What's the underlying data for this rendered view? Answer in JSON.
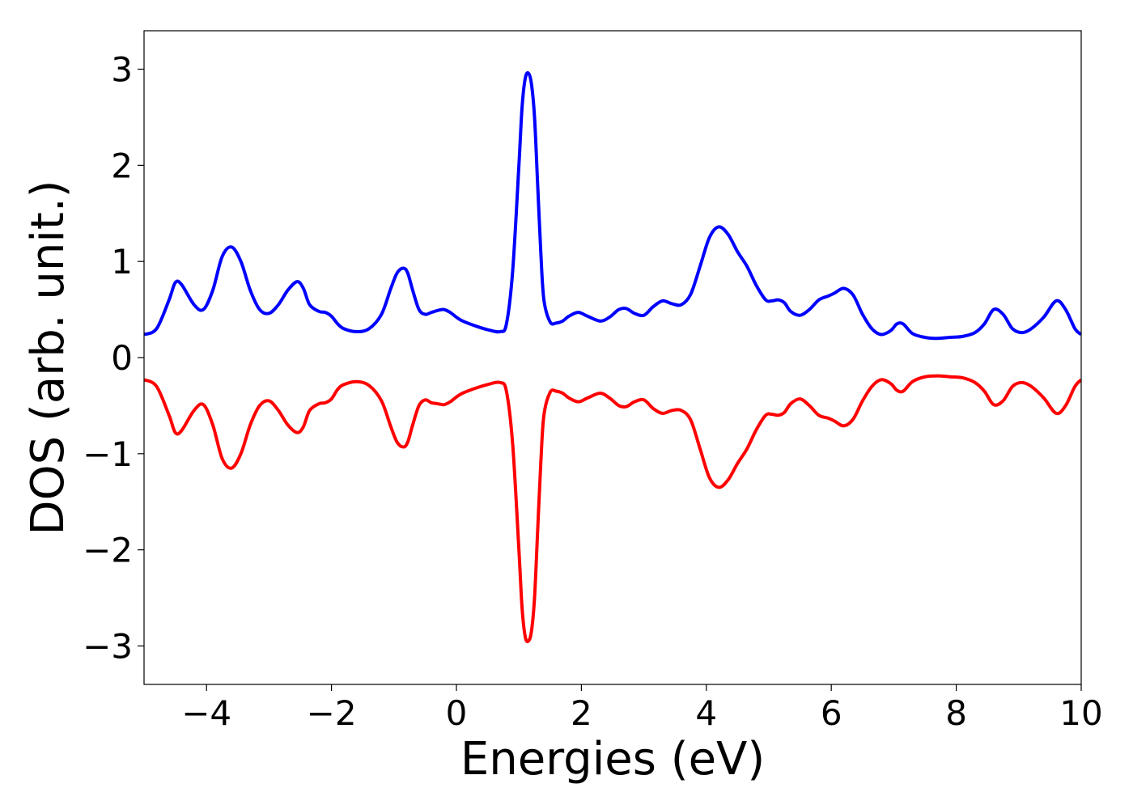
{
  "chart_data": {
    "type": "line",
    "title": "",
    "xlabel": "Energies (eV)",
    "ylabel": "DOS (arb. unit.)",
    "xlim": [
      -5,
      10
    ],
    "ylim": [
      -3.4,
      3.4
    ],
    "xticks": [
      -4,
      -2,
      0,
      2,
      4,
      6,
      8,
      10
    ],
    "xtick_labels": [
      "−4",
      "−2",
      "0",
      "2",
      "4",
      "6",
      "8",
      "10"
    ],
    "yticks": [
      3,
      2,
      1,
      0,
      -1,
      -2,
      -3
    ],
    "ytick_labels": [
      "3",
      "2",
      "1",
      "0",
      "−1",
      "−2",
      "−3"
    ],
    "grid": false,
    "legend": "none",
    "series": [
      {
        "color": "#0000ff",
        "x": [
          -5.0,
          -4.8,
          -4.6,
          -4.5,
          -4.4,
          -4.2,
          -4.05,
          -3.9,
          -3.75,
          -3.6,
          -3.45,
          -3.3,
          -3.15,
          -3.0,
          -2.85,
          -2.7,
          -2.55,
          -2.45,
          -2.35,
          -2.2,
          -2.1,
          -2.0,
          -1.9,
          -1.8,
          -1.6,
          -1.4,
          -1.2,
          -1.05,
          -0.95,
          -0.85,
          -0.78,
          -0.7,
          -0.6,
          -0.5,
          -0.4,
          -0.3,
          -0.2,
          -0.1,
          0.0,
          0.1,
          0.3,
          0.5,
          0.7,
          0.8,
          0.9,
          1.0,
          1.05,
          1.1,
          1.15,
          1.2,
          1.25,
          1.3,
          1.35,
          1.4,
          1.5,
          1.6,
          1.7,
          1.8,
          1.95,
          2.1,
          2.3,
          2.45,
          2.6,
          2.72,
          2.85,
          3.0,
          3.15,
          3.3,
          3.45,
          3.6,
          3.75,
          3.9,
          4.05,
          4.2,
          4.35,
          4.5,
          4.65,
          4.8,
          4.95,
          5.05,
          5.15,
          5.25,
          5.35,
          5.5,
          5.65,
          5.8,
          5.95,
          6.05,
          6.2,
          6.35,
          6.5,
          6.65,
          6.8,
          6.95,
          7.05,
          7.15,
          7.3,
          7.5,
          7.7,
          7.9,
          8.1,
          8.3,
          8.45,
          8.6,
          8.75,
          8.9,
          9.05,
          9.2,
          9.4,
          9.6,
          9.75,
          9.9,
          10.0
        ],
        "y": [
          0.24,
          0.3,
          0.6,
          0.78,
          0.76,
          0.55,
          0.5,
          0.7,
          1.05,
          1.15,
          1.0,
          0.7,
          0.5,
          0.46,
          0.55,
          0.7,
          0.79,
          0.72,
          0.55,
          0.48,
          0.47,
          0.43,
          0.35,
          0.3,
          0.27,
          0.3,
          0.45,
          0.72,
          0.88,
          0.93,
          0.88,
          0.7,
          0.5,
          0.45,
          0.47,
          0.49,
          0.5,
          0.47,
          0.42,
          0.38,
          0.33,
          0.29,
          0.27,
          0.35,
          0.9,
          2.0,
          2.6,
          2.9,
          2.96,
          2.85,
          2.5,
          1.8,
          1.1,
          0.6,
          0.37,
          0.36,
          0.38,
          0.43,
          0.47,
          0.43,
          0.38,
          0.42,
          0.5,
          0.51,
          0.46,
          0.44,
          0.53,
          0.59,
          0.56,
          0.55,
          0.66,
          0.95,
          1.25,
          1.36,
          1.28,
          1.1,
          0.95,
          0.75,
          0.6,
          0.59,
          0.6,
          0.57,
          0.48,
          0.44,
          0.5,
          0.6,
          0.64,
          0.67,
          0.72,
          0.65,
          0.45,
          0.3,
          0.24,
          0.28,
          0.35,
          0.35,
          0.25,
          0.21,
          0.2,
          0.21,
          0.22,
          0.26,
          0.35,
          0.5,
          0.45,
          0.3,
          0.26,
          0.3,
          0.42,
          0.59,
          0.5,
          0.3,
          0.24
        ]
      },
      {
        "color": "#ff0000",
        "x": [
          -5.0,
          -4.8,
          -4.6,
          -4.5,
          -4.4,
          -4.2,
          -4.05,
          -3.9,
          -3.75,
          -3.6,
          -3.45,
          -3.3,
          -3.15,
          -3.0,
          -2.85,
          -2.7,
          -2.55,
          -2.45,
          -2.35,
          -2.2,
          -2.1,
          -2.0,
          -1.9,
          -1.8,
          -1.6,
          -1.4,
          -1.2,
          -1.05,
          -0.95,
          -0.85,
          -0.78,
          -0.7,
          -0.6,
          -0.5,
          -0.4,
          -0.3,
          -0.2,
          -0.1,
          0.0,
          0.1,
          0.3,
          0.5,
          0.7,
          0.8,
          0.9,
          1.0,
          1.05,
          1.1,
          1.15,
          1.2,
          1.25,
          1.3,
          1.35,
          1.4,
          1.5,
          1.6,
          1.7,
          1.8,
          1.95,
          2.1,
          2.3,
          2.45,
          2.6,
          2.72,
          2.85,
          3.0,
          3.15,
          3.3,
          3.45,
          3.6,
          3.75,
          3.9,
          4.05,
          4.2,
          4.35,
          4.5,
          4.65,
          4.8,
          4.95,
          5.05,
          5.15,
          5.25,
          5.35,
          5.5,
          5.65,
          5.8,
          5.95,
          6.05,
          6.2,
          6.35,
          6.5,
          6.65,
          6.8,
          6.95,
          7.05,
          7.15,
          7.3,
          7.5,
          7.7,
          7.9,
          8.1,
          8.3,
          8.45,
          8.6,
          8.75,
          8.9,
          9.05,
          9.2,
          9.4,
          9.6,
          9.75,
          9.9,
          10.0
        ],
        "y": [
          -0.23,
          -0.3,
          -0.6,
          -0.78,
          -0.76,
          -0.55,
          -0.49,
          -0.7,
          -1.05,
          -1.15,
          -1.0,
          -0.7,
          -0.5,
          -0.45,
          -0.55,
          -0.7,
          -0.78,
          -0.72,
          -0.55,
          -0.48,
          -0.47,
          -0.43,
          -0.33,
          -0.28,
          -0.25,
          -0.29,
          -0.45,
          -0.72,
          -0.88,
          -0.93,
          -0.88,
          -0.7,
          -0.5,
          -0.44,
          -0.47,
          -0.48,
          -0.49,
          -0.46,
          -0.41,
          -0.37,
          -0.32,
          -0.28,
          -0.26,
          -0.35,
          -0.9,
          -2.0,
          -2.6,
          -2.9,
          -2.95,
          -2.85,
          -2.5,
          -1.8,
          -1.1,
          -0.6,
          -0.36,
          -0.35,
          -0.37,
          -0.42,
          -0.46,
          -0.42,
          -0.37,
          -0.42,
          -0.5,
          -0.51,
          -0.46,
          -0.44,
          -0.53,
          -0.58,
          -0.55,
          -0.55,
          -0.65,
          -0.95,
          -1.25,
          -1.35,
          -1.27,
          -1.1,
          -0.95,
          -0.75,
          -0.6,
          -0.59,
          -0.6,
          -0.57,
          -0.48,
          -0.43,
          -0.5,
          -0.6,
          -0.63,
          -0.66,
          -0.71,
          -0.64,
          -0.45,
          -0.3,
          -0.23,
          -0.27,
          -0.34,
          -0.35,
          -0.25,
          -0.2,
          -0.19,
          -0.2,
          -0.21,
          -0.26,
          -0.35,
          -0.49,
          -0.45,
          -0.3,
          -0.26,
          -0.3,
          -0.42,
          -0.58,
          -0.5,
          -0.3,
          -0.23
        ]
      }
    ]
  }
}
